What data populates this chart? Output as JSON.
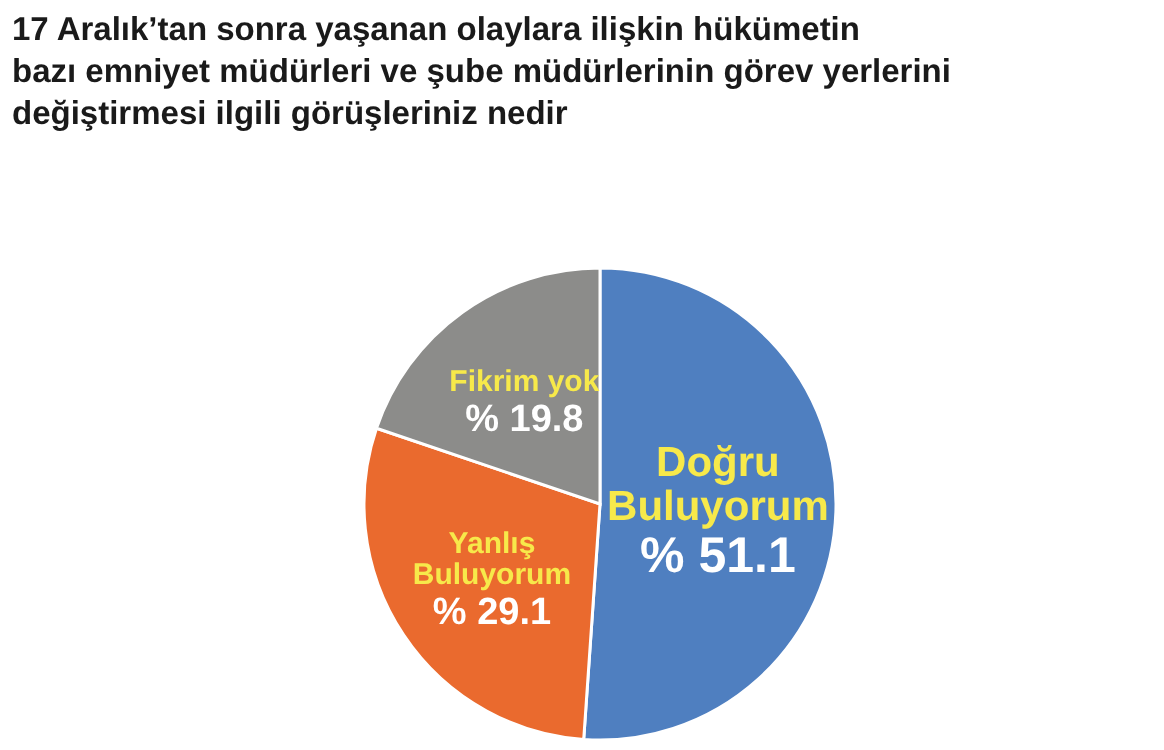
{
  "chart_data": {
    "type": "pie",
    "title": "17 Aralık’tan sonra yaşanan olaylara ilişkin hükümetin\nbazı emniyet müdürleri ve şube müdürlerinin görev yerlerini\ndeğiştirmesi ilgili görüşleriniz nedir",
    "categories": [
      "Doğru Buluyorum",
      "Yanlış Buluyorum",
      "Fikrim yok"
    ],
    "values": [
      51.1,
      29.1,
      19.8
    ],
    "colors": [
      "#4f7fc0",
      "#ea6a2e",
      "#8c8c8a"
    ],
    "value_labels": [
      "% 51.1",
      "% 29.1",
      "% 19.8"
    ],
    "legend": false
  }
}
